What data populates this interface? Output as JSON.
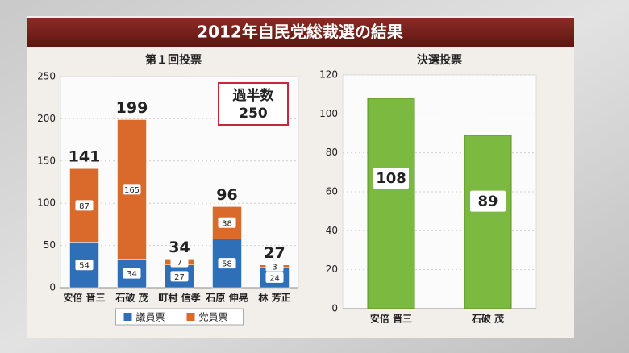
{
  "title": "2012年自民党総裁選の結果",
  "chart_data": [
    {
      "type": "bar",
      "stacked": true,
      "title": "第１回投票",
      "categories": [
        "安倍 晋三",
        "石破 茂",
        "町村 信孝",
        "石原 伸晃",
        "林 芳正"
      ],
      "series": [
        {
          "name": "議員票",
          "color": "#2f6fb8",
          "values": [
            54,
            34,
            27,
            58,
            24
          ]
        },
        {
          "name": "党員票",
          "color": "#d96a2b",
          "values": [
            87,
            165,
            7,
            38,
            3
          ]
        }
      ],
      "totals": [
        141,
        199,
        34,
        96,
        27
      ],
      "annotation": {
        "label": "過半数",
        "value": 250
      },
      "ylim": [
        0,
        250
      ],
      "yticks": [
        0,
        50,
        100,
        150,
        200,
        250
      ],
      "grid": true,
      "legend": "bottom"
    },
    {
      "type": "bar",
      "title": "決選投票",
      "categories": [
        "安倍 晋三",
        "石破 茂"
      ],
      "values": [
        108,
        89
      ],
      "color": "#7cb940",
      "ylim": [
        0,
        120
      ],
      "yticks": [
        0,
        20,
        40,
        60,
        80,
        100,
        120
      ],
      "grid": true
    }
  ]
}
